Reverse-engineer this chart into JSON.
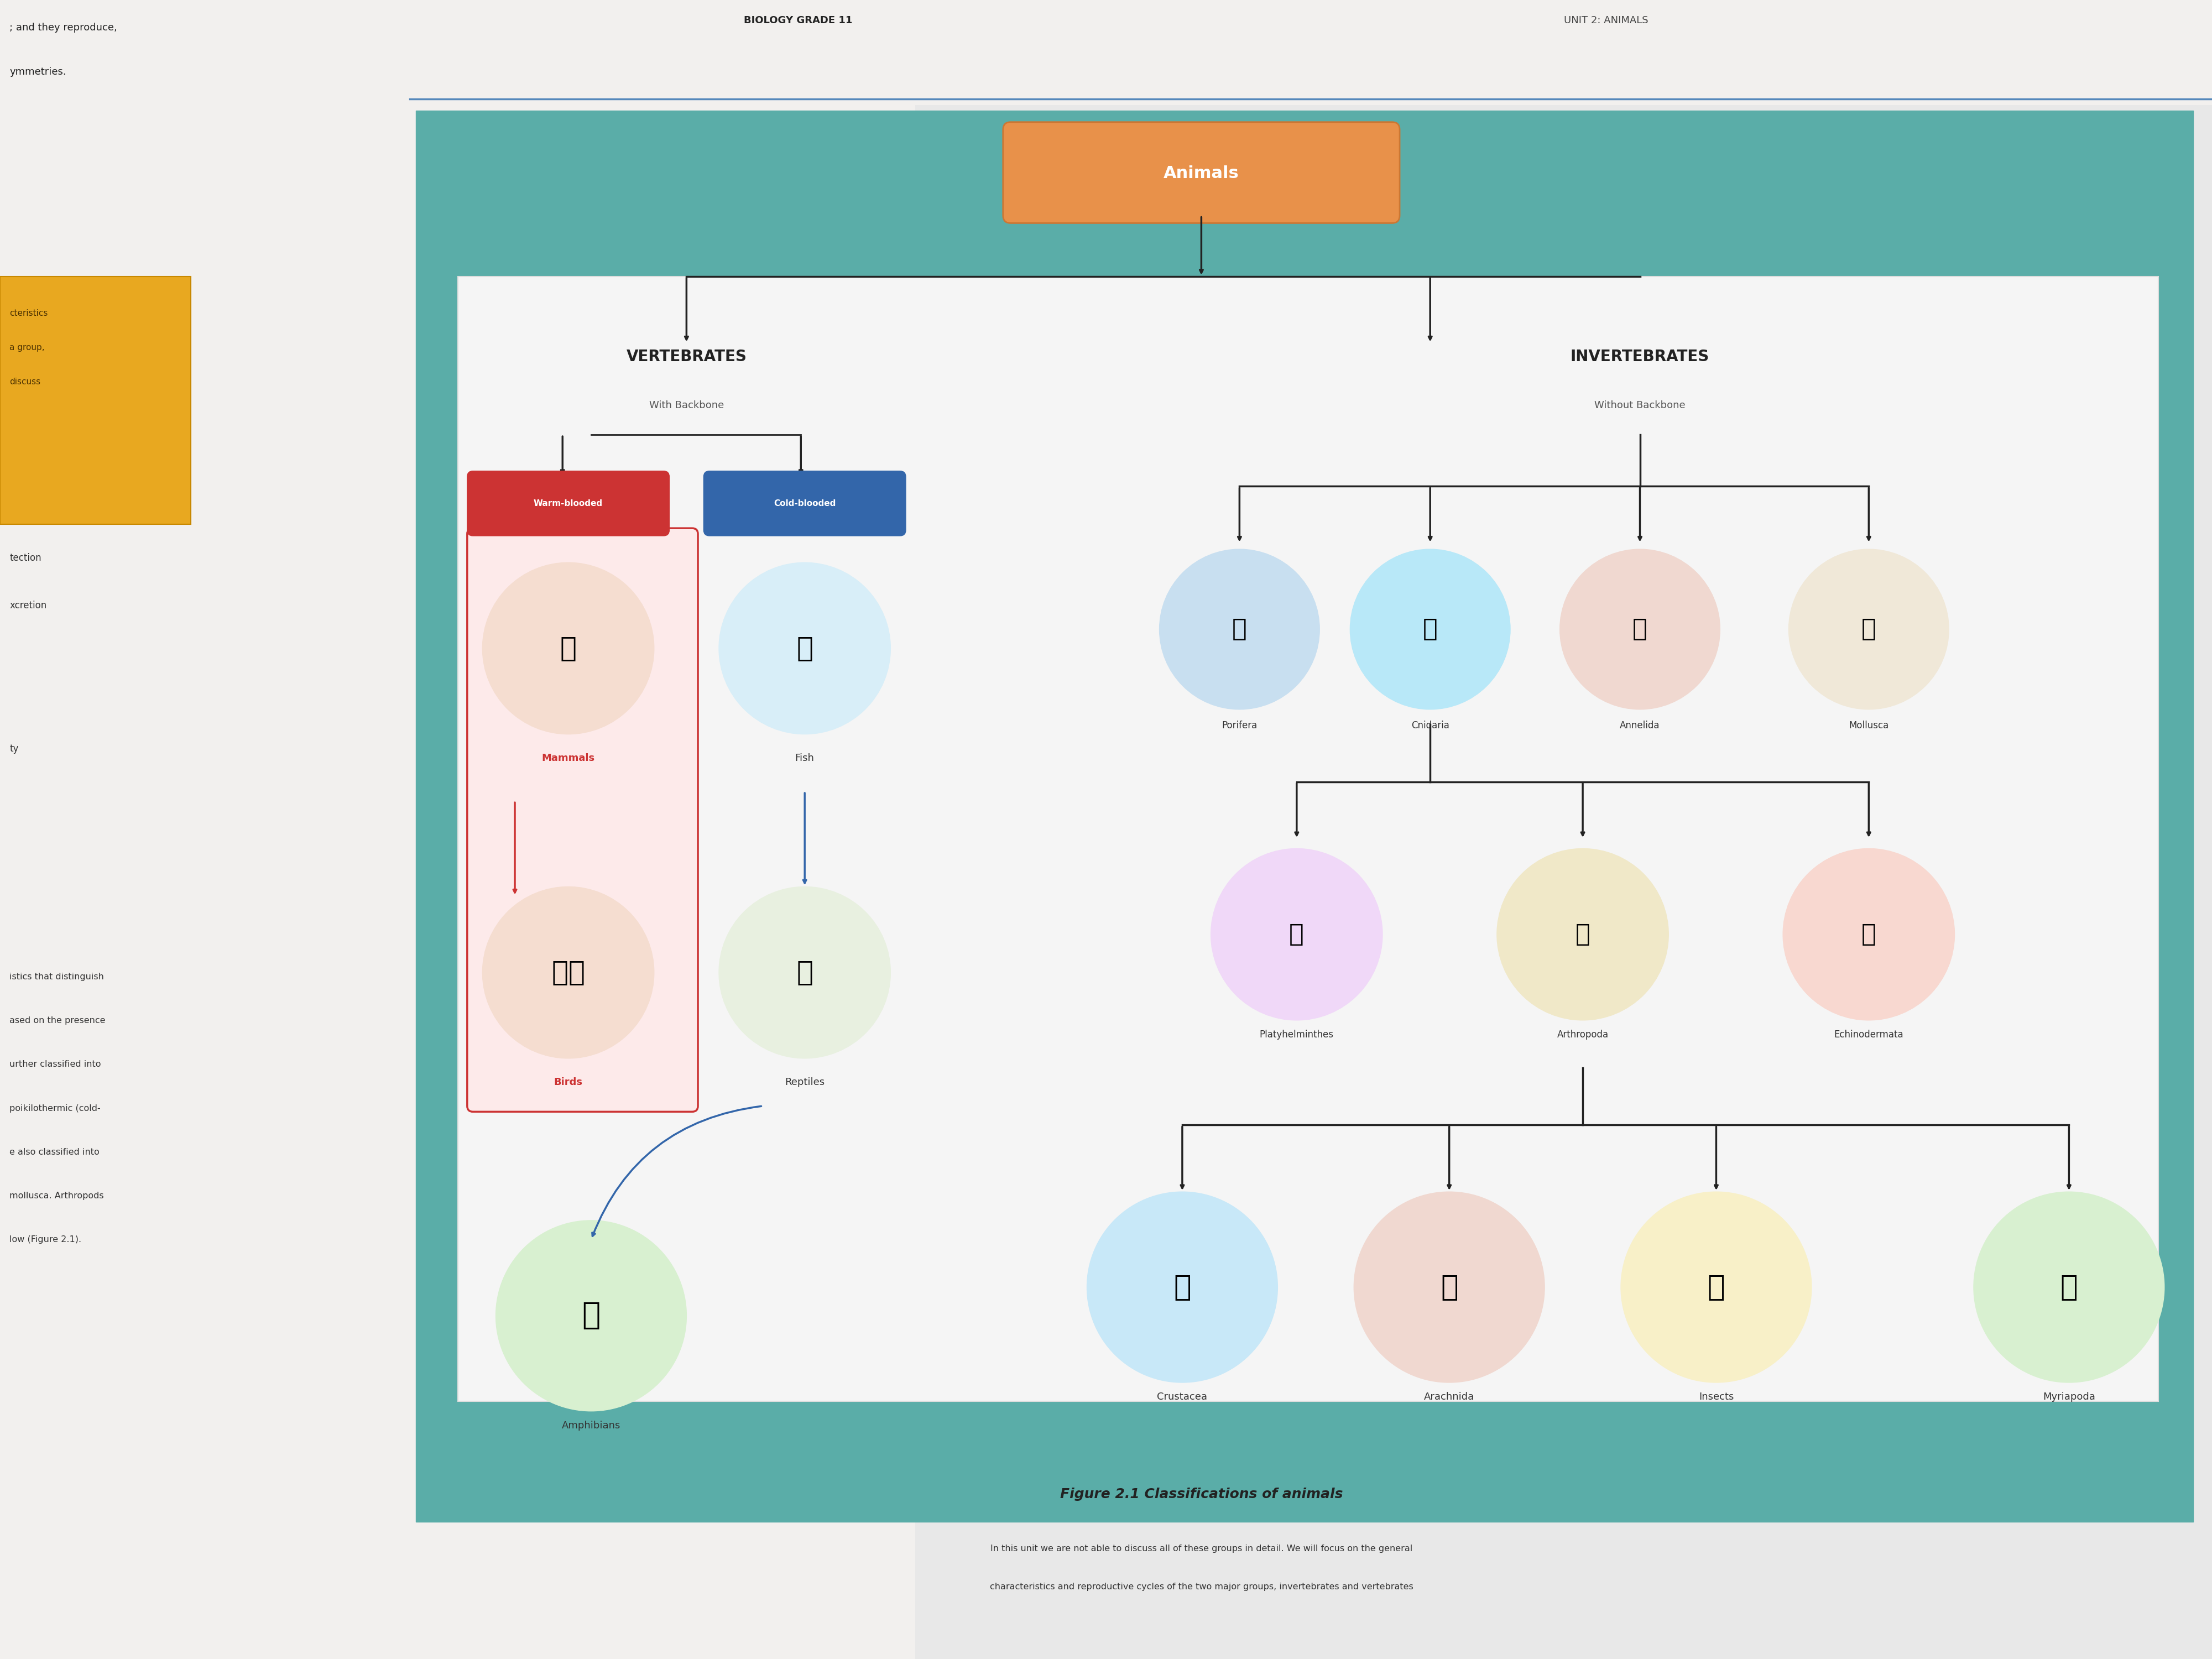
{
  "page_bg": "#e8e8e8",
  "teal_bg": "#5aada8",
  "inner_bg": "#f0f0f0",
  "title_box_color": "#e8914a",
  "title_text": "Animals",
  "title_text_color": "#ffffff",
  "header_left": "VERTEBRATES",
  "header_left_sub": "With Backbone",
  "header_right": "INVERTEBRATES",
  "header_right_sub": "Without Backbone",
  "warm_blooded_label": "Warm-blooded",
  "warm_blooded_color": "#cc3333",
  "warm_box_border": "#cc3333",
  "cold_blooded_label": "Cold-blooded",
  "cold_blooded_color": "#3366aa",
  "cold_box_border": "#3366aa",
  "vertebrate_items": [
    "Mammals",
    "Fish",
    "Birds",
    "Reptiles",
    "Amphibians"
  ],
  "invertebrate_row1": [
    "Porifera",
    "Cnidaria",
    "Annelida",
    "Mollusca"
  ],
  "invertebrate_row2_left": "Platyhelminthes",
  "invertebrate_row2_mid": "Arthropoda",
  "invertebrate_row2_right": "Echinodermata",
  "invertebrate_row3": [
    "Crustacea",
    "Arachnida",
    "Insects",
    "Myriapoda"
  ],
  "figure_caption": "Figure 2.1 Classifications of animals",
  "arrow_color": "#222222",
  "red_arrow": "#cc3333",
  "blue_arrow": "#3366aa",
  "mammals_label_color": "#cc3333",
  "birds_label_color": "#cc3333",
  "fish_label_color": "#333333",
  "reptiles_label_color": "#333333",
  "amphibians_label_color": "#333333",
  "biology_grade": "BIOLOGY GRADE 11",
  "unit_text": "UNIT 2: ANIMALS",
  "warm_section_bg": "#fdeaea",
  "cold_section_bg": "#ffffff",
  "left_text_color": "#333333",
  "left_text_lines": [
    "; and they reproduce,",
    "ymmetries.",
    "",
    "cteristics",
    "a group,",
    "discuss",
    "",
    "tection",
    "xcretion",
    "",
    "ty",
    "",
    "",
    "",
    "istics that distinguish",
    "ased on the presence",
    "urther classified into",
    "poikilothermic (cold-",
    "e also classified into",
    "mollusca. Arthropods",
    "low (Figure 2.1)."
  ],
  "bottom_line1": "In this unit we are not able to discuss all of these groups in detail. We will focus on the general",
  "bottom_line2": "characteristics and reproductive cycles of the two major groups, invertebrates and vertebrates"
}
